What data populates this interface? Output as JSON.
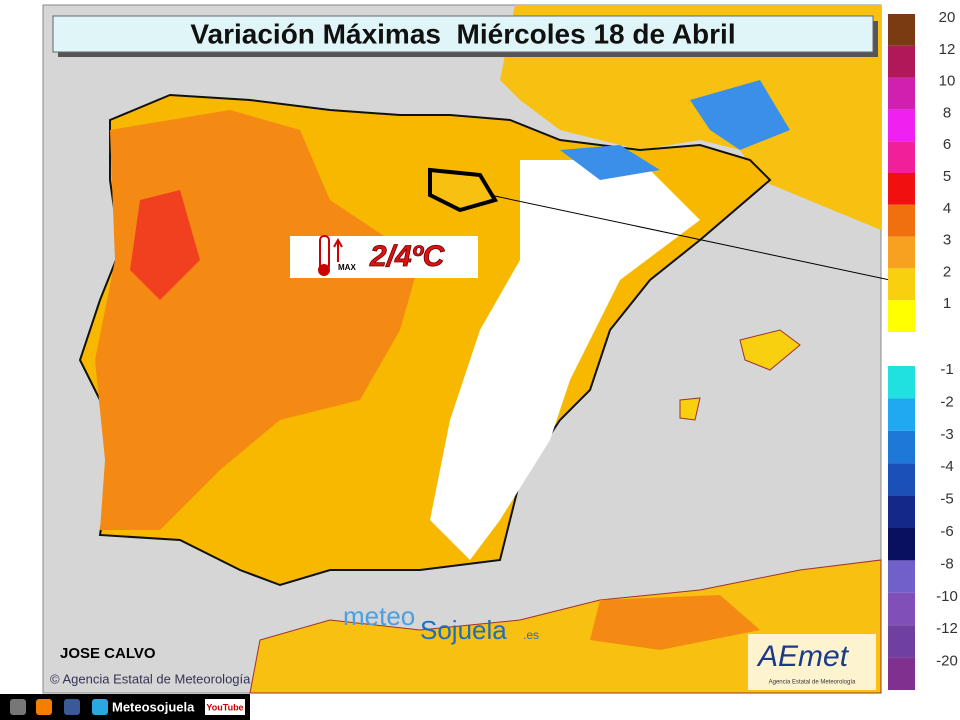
{
  "title": "Variación Máximas  Miércoles 18 de Abril",
  "badge": {
    "value": "2/4ºC",
    "subscript": "MAX"
  },
  "legend": {
    "positive": [
      {
        "label": "20",
        "color": "#7a3a12"
      },
      {
        "label": "12",
        "color": "#b0185a"
      },
      {
        "label": "10",
        "color": "#d020b0"
      },
      {
        "label": "8",
        "color": "#f020f0"
      },
      {
        "label": "6",
        "color": "#f0209a"
      },
      {
        "label": "5",
        "color": "#f01010"
      },
      {
        "label": "4",
        "color": "#f07010"
      },
      {
        "label": "3",
        "color": "#f8a020"
      },
      {
        "label": "2",
        "color": "#f8d010"
      },
      {
        "label": "1",
        "color": "#ffff00"
      }
    ],
    "negative": [
      {
        "label": "-1",
        "color": "#20e0e0"
      },
      {
        "label": "-2",
        "color": "#20a8f0"
      },
      {
        "label": "-3",
        "color": "#1e78d8"
      },
      {
        "label": "-4",
        "color": "#1a50b8"
      },
      {
        "label": "-5",
        "color": "#14288a"
      },
      {
        "label": "-6",
        "color": "#0a1060"
      },
      {
        "label": "-8",
        "color": "#7060c8"
      },
      {
        "label": "-10",
        "color": "#8050b8"
      },
      {
        "label": "-12",
        "color": "#7040a0"
      },
      {
        "label": "-20",
        "color": "#80308f"
      }
    ]
  },
  "author": "JOSE CALVO",
  "copyright": "© Agencia Estatal de Meteorología",
  "watermark": {
    "meteo": "meteo",
    "sojuela": "Sojuela",
    "suffix": ".es"
  },
  "logo": {
    "name": "AEmet",
    "subtitle": "Agencia Estatal de Meteorología"
  },
  "footer": {
    "brand": "Meteosojuela",
    "youtube": "YouTube"
  }
}
